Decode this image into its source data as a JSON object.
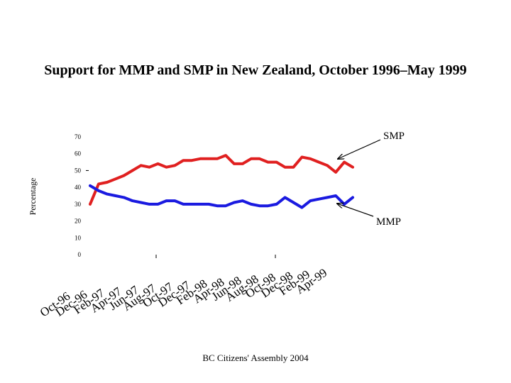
{
  "chart_data": {
    "type": "line",
    "title": "Support for MMP and SMP in New Zealand, October 1996–May 1999",
    "xlabel": "",
    "ylabel": "Percentage",
    "ylim": [
      0,
      70
    ],
    "yticks": [
      0,
      10,
      20,
      30,
      40,
      50,
      60,
      70
    ],
    "categories": [
      "Oct-96",
      "Dec-96",
      "Feb-97",
      "Apr-97",
      "Jun-97",
      "Aug-97",
      "Oct-97",
      "Dec-97",
      "Feb-98",
      "Apr-98",
      "Jun-98",
      "Aug-98",
      "Oct-98",
      "Dec-98",
      "Feb-99",
      "Apr-99"
    ],
    "x_range": [
      0,
      31
    ],
    "series": [
      {
        "name": "SMP",
        "color": "#e02020",
        "x": [
          0,
          1,
          2,
          3,
          4,
          5,
          6,
          7,
          8,
          9,
          10,
          11,
          12,
          13,
          14,
          15,
          16,
          17,
          18,
          19,
          20,
          21,
          22,
          23,
          24,
          25,
          26,
          27,
          28,
          29,
          30,
          31
        ],
        "values": [
          30,
          42,
          43,
          45,
          47,
          50,
          53,
          52,
          54,
          52,
          53,
          56,
          56,
          57,
          57,
          57,
          59,
          54,
          54,
          57,
          57,
          55,
          55,
          52,
          52,
          58,
          57,
          55,
          53,
          49,
          55,
          52
        ]
      },
      {
        "name": "MMP",
        "color": "#1a1ae0",
        "x": [
          0,
          1,
          2,
          3,
          4,
          5,
          6,
          7,
          8,
          9,
          10,
          11,
          12,
          13,
          14,
          15,
          16,
          17,
          18,
          19,
          20,
          21,
          22,
          23,
          24,
          25,
          26,
          27,
          28,
          29,
          30,
          31
        ],
        "values": [
          41,
          38,
          36,
          35,
          34,
          32,
          31,
          30,
          30,
          32,
          32,
          30,
          30,
          30,
          30,
          29,
          29,
          31,
          32,
          30,
          29,
          29,
          30,
          34,
          31,
          28,
          32,
          33,
          34,
          35,
          30,
          34
        ]
      }
    ],
    "annotations": [
      "SMP",
      "MMP"
    ]
  },
  "footer": "BC Citizens' Assembly 2004"
}
